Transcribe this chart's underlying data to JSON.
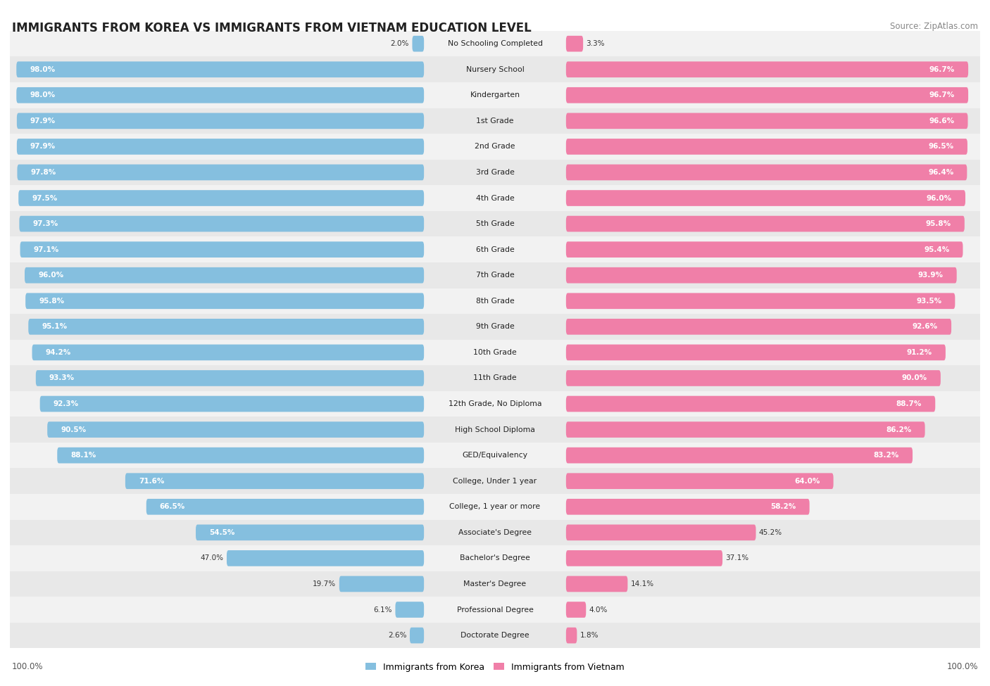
{
  "title": "IMMIGRANTS FROM KOREA VS IMMIGRANTS FROM VIETNAM EDUCATION LEVEL",
  "source": "Source: ZipAtlas.com",
  "categories": [
    "No Schooling Completed",
    "Nursery School",
    "Kindergarten",
    "1st Grade",
    "2nd Grade",
    "3rd Grade",
    "4th Grade",
    "5th Grade",
    "6th Grade",
    "7th Grade",
    "8th Grade",
    "9th Grade",
    "10th Grade",
    "11th Grade",
    "12th Grade, No Diploma",
    "High School Diploma",
    "GED/Equivalency",
    "College, Under 1 year",
    "College, 1 year or more",
    "Associate's Degree",
    "Bachelor's Degree",
    "Master's Degree",
    "Professional Degree",
    "Doctorate Degree"
  ],
  "korea_values": [
    2.0,
    98.0,
    98.0,
    97.9,
    97.9,
    97.8,
    97.5,
    97.3,
    97.1,
    96.0,
    95.8,
    95.1,
    94.2,
    93.3,
    92.3,
    90.5,
    88.1,
    71.6,
    66.5,
    54.5,
    47.0,
    19.7,
    6.1,
    2.6
  ],
  "vietnam_values": [
    3.3,
    96.7,
    96.7,
    96.6,
    96.5,
    96.4,
    96.0,
    95.8,
    95.4,
    93.9,
    93.5,
    92.6,
    91.2,
    90.0,
    88.7,
    86.2,
    83.2,
    64.0,
    58.2,
    45.2,
    37.1,
    14.1,
    4.0,
    1.8
  ],
  "korea_color": "#85BFDF",
  "vietnam_color": "#F07FA8",
  "row_color_even": "#F2F2F2",
  "row_color_odd": "#E8E8E8",
  "background_color": "#FFFFFF",
  "legend_korea": "Immigrants from Korea",
  "legend_vietnam": "Immigrants from Vietnam",
  "title_fontsize": 12,
  "source_fontsize": 8.5,
  "label_fontsize": 7.8,
  "value_fontsize": 7.5
}
